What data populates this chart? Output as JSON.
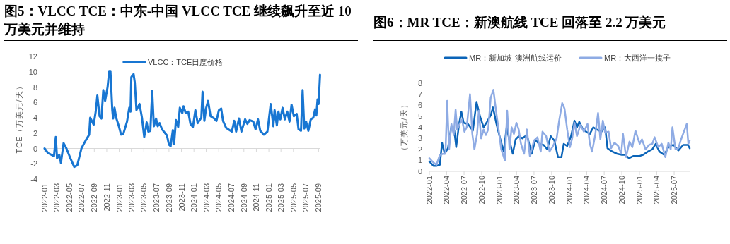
{
  "chart_data": [
    {
      "type": "line",
      "title": "图5：VLCC TCE：中东-中国 VLCC TCE 继续飙升至近 10 万美元并维持",
      "ylabel": "TCE（万美元/天）",
      "legend": "top",
      "ylim": [
        -4,
        12
      ],
      "yticks": [
        -4,
        -2,
        0,
        2,
        4,
        6,
        8,
        10,
        12
      ],
      "xlim": [
        "2022-01-01",
        "2025-09-10"
      ],
      "xticks": [
        "2022-01",
        "2022-03",
        "2022-05",
        "2022-07",
        "2022-09",
        "2022-11",
        "2023-01",
        "2023-03",
        "2023-05",
        "2023-07",
        "2023-09",
        "2023-11",
        "2024-01",
        "2024-03",
        "2024-05",
        "2024-07",
        "2024-09",
        "2024-11",
        "2025-01",
        "2025-03",
        "2025-05",
        "2025-07",
        "2025-09"
      ],
      "series": [
        {
          "name": "VLCC：TCE日度价格",
          "color": "#1876d2",
          "x": [
            "2022-01-01",
            "2022-01-18",
            "2022-02-16",
            "2022-02-25",
            "2022-03-03",
            "2022-03-14",
            "2022-03-22",
            "2022-04-04",
            "2022-04-18",
            "2022-05-06",
            "2022-05-26",
            "2022-06-10",
            "2022-06-30",
            "2022-07-20",
            "2022-08-07",
            "2022-08-12",
            "2022-08-29",
            "2022-09-08",
            "2022-09-16",
            "2022-09-27",
            "2022-10-06",
            "2022-10-15",
            "2022-10-24",
            "2022-11-05",
            "2022-11-13",
            "2022-11-19",
            "2022-11-28",
            "2022-12-02",
            "2022-12-09",
            "2022-12-17",
            "2022-12-29",
            "2023-01-10",
            "2023-01-21",
            "2023-02-08",
            "2023-02-19",
            "2023-02-25",
            "2023-03-01",
            "2023-03-12",
            "2023-03-18",
            "2023-03-26",
            "2023-04-10",
            "2023-04-22",
            "2023-05-03",
            "2023-05-15",
            "2023-05-23",
            "2023-06-02",
            "2023-06-11",
            "2023-06-19",
            "2023-06-30",
            "2023-07-08",
            "2023-07-17",
            "2023-07-29",
            "2023-08-22",
            "2023-09-01",
            "2023-09-09",
            "2023-09-20",
            "2023-09-26",
            "2023-10-05",
            "2023-10-16",
            "2023-10-24",
            "2023-11-05",
            "2023-11-11",
            "2023-11-22",
            "2023-12-04",
            "2023-12-15",
            "2023-12-27",
            "2024-01-08",
            "2024-01-19",
            "2024-02-06",
            "2024-02-12",
            "2024-02-21",
            "2024-02-29",
            "2024-03-10",
            "2024-03-22",
            "2024-04-09",
            "2024-04-20",
            "2024-05-02",
            "2024-05-13",
            "2024-05-22",
            "2024-06-06",
            "2024-06-23",
            "2024-07-04",
            "2024-07-16",
            "2024-07-25",
            "2024-08-08",
            "2024-08-20",
            "2024-09-07",
            "2024-09-18",
            "2024-09-29",
            "2024-10-17",
            "2024-10-28",
            "2024-11-09",
            "2024-11-20",
            "2024-12-08",
            "2024-12-25",
            "2025-01-10",
            "2025-01-23",
            "2025-01-29",
            "2025-02-09",
            "2025-02-17",
            "2025-02-26",
            "2025-03-09",
            "2025-03-20",
            "2025-04-01",
            "2025-04-12",
            "2025-04-22",
            "2025-05-03",
            "2025-05-17",
            "2025-05-26",
            "2025-06-07",
            "2025-06-15",
            "2025-06-23",
            "2025-07-02",
            "2025-07-13",
            "2025-07-25",
            "2025-08-06",
            "2025-08-15",
            "2025-08-21",
            "2025-08-27",
            "2025-09-01",
            "2025-09-08"
          ],
          "values": [
            0,
            -0.6,
            -1.0,
            1.5,
            -1.3,
            -0.8,
            -1.9,
            0.7,
            0,
            -1.2,
            -2.4,
            -2.2,
            0,
            1,
            1.8,
            4.0,
            3.1,
            4.8,
            6.9,
            4.2,
            3.9,
            7.6,
            6.2,
            8,
            10.1,
            10.1,
            5.0,
            3.9,
            5.3,
            4.0,
            3.0,
            1.8,
            1.9,
            3.5,
            5.3,
            4.8,
            9.3,
            9.7,
            8.6,
            5.0,
            5.8,
            4.0,
            1.5,
            3.4,
            2.2,
            2.3,
            7.5,
            2.9,
            3.9,
            2.9,
            3.3,
            2.5,
            1.7,
            0.5,
            0.3,
            2.4,
            0.6,
            3.7,
            2.8,
            5.3,
            4.6,
            5.5,
            4.6,
            4.8,
            3.2,
            2.8,
            5.0,
            3.3,
            4.0,
            7.4,
            3.6,
            5.2,
            6.2,
            4.2,
            3.9,
            3.6,
            5.0,
            5.2,
            3.6,
            2.7,
            2.4,
            2.2,
            3.6,
            2.2,
            3.9,
            2.2,
            3.8,
            3.2,
            3.7,
            3.5,
            2.5,
            3.8,
            2.3,
            1.8,
            2.2,
            5.8,
            2.9,
            5.0,
            3.0,
            4.8,
            3.8,
            5.3,
            3.8,
            4.8,
            3.5,
            5.7,
            4.2,
            4.5,
            2.5,
            2.3,
            7.6,
            2.6,
            3.5,
            2.3,
            3.8,
            4.0,
            5.1,
            4.3,
            6.4,
            5.8,
            9.6
          ]
        }
      ]
    },
    {
      "type": "line",
      "title": "图6：MR TCE：新澳航线 TCE 回落至 2.2 万美元",
      "ylabel": "（万美元/天）",
      "legend": "top",
      "ylim": [
        0,
        8
      ],
      "yticks": [
        0,
        1,
        2,
        3,
        4,
        5,
        6,
        7,
        8
      ],
      "xlim": [
        "2022-01-01",
        "2025-09-20"
      ],
      "xticks": [
        "2022-01",
        "2022-04",
        "2022-07",
        "2022-10",
        "2023-01",
        "2023-04",
        "2023-07",
        "2023-10",
        "2024-01",
        "2024-04",
        "2024-07",
        "2024-10",
        "2025-01",
        "2025-04",
        "2025-07"
      ],
      "series": [
        {
          "name": "MR：新加坡-澳洲航线运价",
          "color": "#0b64b8",
          "x": [
            "2022-01-01",
            "2022-01-22",
            "2022-02-07",
            "2022-02-25",
            "2022-03-08",
            "2022-03-22",
            "2022-04-08",
            "2022-04-26",
            "2022-05-11",
            "2022-05-21",
            "2022-06-05",
            "2022-06-17",
            "2022-06-29",
            "2022-07-21",
            "2022-08-16",
            "2022-09-04",
            "2022-09-22",
            "2022-10-11",
            "2022-10-29",
            "2022-11-17",
            "2022-11-29",
            "2022-12-17",
            "2023-01-05",
            "2023-01-24",
            "2023-02-08",
            "2023-02-23",
            "2023-03-12",
            "2023-03-27",
            "2023-04-12",
            "2023-05-01",
            "2023-05-25",
            "2023-06-19",
            "2023-07-08",
            "2023-07-26",
            "2023-08-20",
            "2023-09-08",
            "2023-09-26",
            "2023-10-15",
            "2023-11-03",
            "2023-11-21",
            "2023-12-03",
            "2023-12-21",
            "2024-01-10",
            "2024-01-28",
            "2024-02-10",
            "2024-02-22",
            "2024-03-10",
            "2024-03-29",
            "2024-04-17",
            "2024-05-05",
            "2024-05-23",
            "2024-06-17",
            "2024-07-06",
            "2024-07-18",
            "2024-08-12",
            "2024-09-06",
            "2024-10-01",
            "2024-10-19",
            "2024-11-07",
            "2024-12-01",
            "2025-01-02",
            "2025-01-20",
            "2025-02-14",
            "2025-03-09",
            "2025-03-27",
            "2025-04-15",
            "2025-05-10",
            "2025-06-04",
            "2025-06-28",
            "2025-07-23",
            "2025-08-17",
            "2025-09-11",
            "2025-09-20"
          ],
          "values": [
            0.9,
            0.5,
            0.5,
            0.6,
            2.6,
            1.6,
            2.1,
            4.1,
            3.7,
            2.2,
            4.3,
            5.4,
            4.4,
            4.3,
            3.7,
            6.3,
            5.0,
            4.0,
            4.5,
            5.1,
            5.8,
            4.3,
            3.0,
            1.8,
            4.0,
            2.8,
            1.6,
            2.9,
            3.2,
            3.0,
            3.3,
            1.6,
            2.9,
            2.5,
            2.4,
            2.0,
            3.2,
            2.8,
            1.3,
            1.3,
            2.5,
            2.3,
            3.2,
            4.6,
            4.0,
            4.5,
            3.9,
            3.6,
            3.4,
            4.0,
            3.8,
            3.6,
            4.0,
            2.1,
            1.8,
            1.6,
            1.5,
            1.5,
            1.2,
            1.4,
            1.4,
            1.5,
            1.8,
            2.0,
            2.5,
            1.8,
            1.5,
            2.3,
            2.4,
            1.9,
            2.4,
            2.4,
            2.1
          ]
        },
        {
          "name": "MR：大西洋一揽子",
          "color": "#8eabe4",
          "x": [
            "2022-01-01",
            "2022-01-22",
            "2022-02-07",
            "2022-02-25",
            "2022-03-15",
            "2022-03-26",
            "2022-04-04",
            "2022-04-14",
            "2022-04-26",
            "2022-05-08",
            "2022-05-18",
            "2022-05-26",
            "2022-06-08",
            "2022-06-20",
            "2022-07-03",
            "2022-07-15",
            "2022-08-01",
            "2022-08-13",
            "2022-08-24",
            "2022-09-07",
            "2022-09-16",
            "2022-09-28",
            "2022-10-11",
            "2022-10-23",
            "2022-11-04",
            "2022-11-17",
            "2022-12-01",
            "2022-12-17",
            "2022-12-29",
            "2023-01-11",
            "2023-01-30",
            "2023-02-11",
            "2023-02-23",
            "2023-03-06",
            "2023-03-18",
            "2023-03-31",
            "2023-04-12",
            "2023-04-24",
            "2023-05-10",
            "2023-05-25",
            "2023-06-09",
            "2023-07-01",
            "2023-07-19",
            "2023-08-05",
            "2023-08-14",
            "2023-09-02",
            "2023-09-20",
            "2023-10-08",
            "2023-10-27",
            "2023-11-09",
            "2023-11-25",
            "2023-12-07",
            "2023-12-21",
            "2024-01-04",
            "2024-01-16",
            "2024-01-28",
            "2024-02-10",
            "2024-02-28",
            "2024-03-17",
            "2024-04-05",
            "2024-04-17",
            "2024-04-29",
            "2024-05-15",
            "2024-05-30",
            "2024-06-11",
            "2024-06-24",
            "2024-07-06",
            "2024-07-24",
            "2024-08-06",
            "2024-08-24",
            "2024-09-12",
            "2024-09-28",
            "2024-10-07",
            "2024-10-23",
            "2024-11-10",
            "2024-11-25",
            "2024-12-11",
            "2025-01-02",
            "2025-01-14",
            "2025-02-02",
            "2025-02-20",
            "2025-03-09",
            "2025-03-21",
            "2025-04-09",
            "2025-04-27",
            "2025-05-16",
            "2025-06-01",
            "2025-06-13",
            "2025-06-22",
            "2025-07-08",
            "2025-07-23",
            "2025-08-04",
            "2025-08-23",
            "2025-09-05",
            "2025-09-13",
            "2025-09-20"
          ],
          "values": [
            1.2,
            0.8,
            0.6,
            1.5,
            1.6,
            1.6,
            6.4,
            2.0,
            4.3,
            3.3,
            5.6,
            3.8,
            4.3,
            4.7,
            3.6,
            4.0,
            7.0,
            3.4,
            2.0,
            3.4,
            5.5,
            3.0,
            3.8,
            3.3,
            3.8,
            6.7,
            7.4,
            5.2,
            3.7,
            2.0,
            1.0,
            5.5,
            2.0,
            4.0,
            3.4,
            4.4,
            3.8,
            2.5,
            1.6,
            3.8,
            1.4,
            2.8,
            3.1,
            1.8,
            3.6,
            3.2,
            1.8,
            2.3,
            3.0,
            4.6,
            6.2,
            5.7,
            3.8,
            2.2,
            3.0,
            4.4,
            3.2,
            4.2,
            3.6,
            4.3,
            2.5,
            1.8,
            3.3,
            5.3,
            2.9,
            4.6,
            3.5,
            3.6,
            2.1,
            2.6,
            2.3,
            1.6,
            3.4,
            1.3,
            2.7,
            2.2,
            3.7,
            2.5,
            2.9,
            2.0,
            2.4,
            2.5,
            3.1,
            2.2,
            2.5,
            1.3,
            2.6,
            2.0,
            4.0,
            2.0,
            2.1,
            2.8,
            3.7,
            4.3,
            2.5,
            2.8
          ]
        }
      ]
    }
  ]
}
